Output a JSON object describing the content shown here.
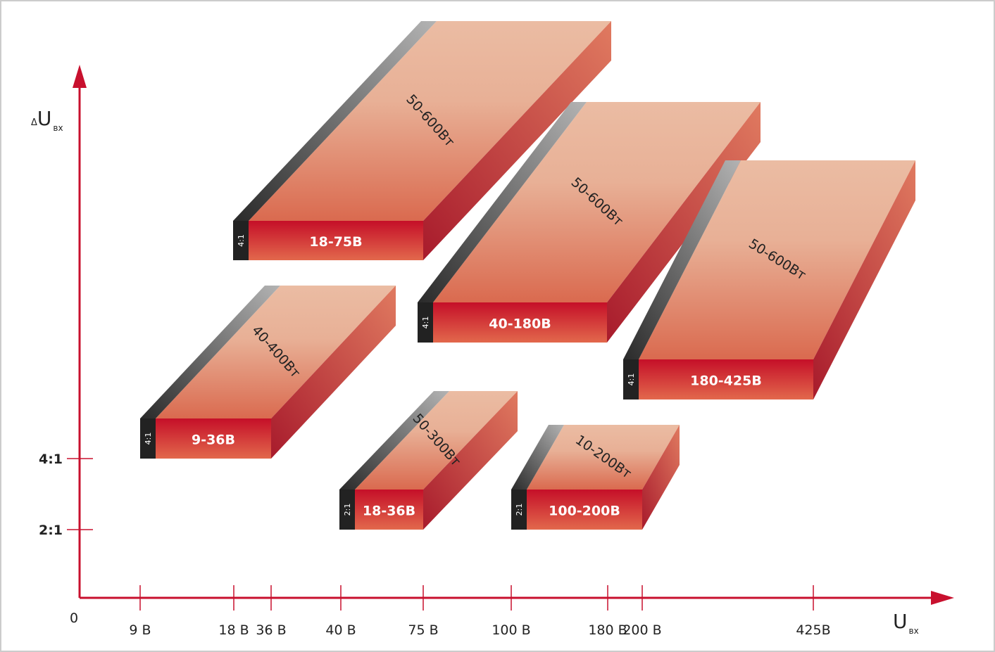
{
  "axes": {
    "origin": "0",
    "y_label": {
      "prefix": "Δ",
      "letter": "U",
      "sub": "вх"
    },
    "x_label": {
      "letter": "U",
      "sub": "вх"
    },
    "x_ticks": [
      "9 В",
      "18 В",
      "36 В",
      "40 В",
      "75 В",
      "100 В",
      "180 В",
      "200 В",
      "425В"
    ],
    "y_ticks": [
      "4:1",
      "2:1"
    ]
  },
  "blocks": [
    {
      "ratio": "4:1",
      "range": "18-75В",
      "power": "50-600Вт"
    },
    {
      "ratio": "4:1",
      "range": "40-180В",
      "power": "50-600Вт"
    },
    {
      "ratio": "4:1",
      "range": "180-425В",
      "power": "50-600Вт"
    },
    {
      "ratio": "4:1",
      "range": "9-36В",
      "power": "40-400Вт"
    },
    {
      "ratio": "2:1",
      "range": "18-36В",
      "power": "50-300Вт"
    },
    {
      "ratio": "2:1",
      "range": "100-200В",
      "power": "10-200Вт"
    }
  ]
}
